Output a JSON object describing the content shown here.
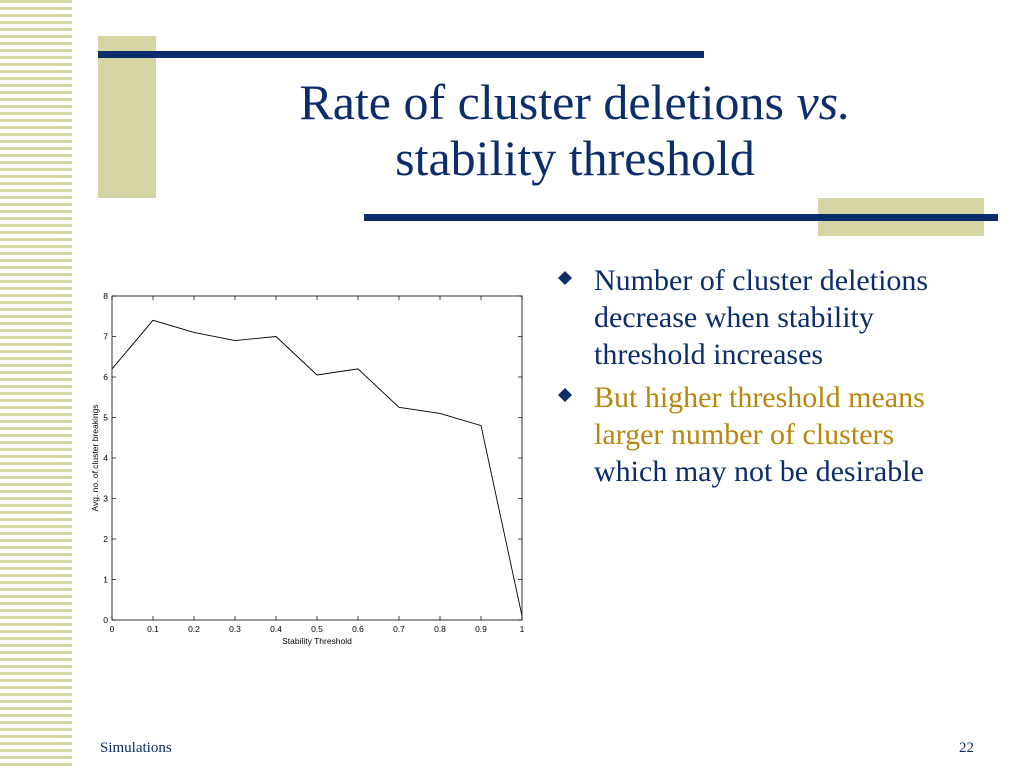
{
  "title": {
    "line1_text": "Rate of cluster deletions",
    "line1_italic": "vs.",
    "line2": "stability threshold"
  },
  "bullets": [
    {
      "parts": [
        {
          "text": "Number of cluster deletions decrease when stability threshold increases",
          "color": "#0b2d6b"
        }
      ]
    },
    {
      "parts": [
        {
          "text": "But higher threshold means larger number of clusters",
          "color": "#b8860b"
        },
        {
          "text": " which may not be desirable",
          "color": "#0b2d6b"
        }
      ]
    }
  ],
  "footer": {
    "section": "Simulations",
    "page": "22"
  },
  "colors": {
    "title": "#0b2d6b",
    "accent": "#b8860b",
    "deco": "#d6d6a4"
  },
  "chart_data": {
    "type": "line",
    "xlabel": "Stability Threshold",
    "ylabel": "Avg. no. of cluster breakings",
    "xlim": [
      0,
      1
    ],
    "ylim": [
      0,
      8
    ],
    "xticks": [
      "0",
      "0.1",
      "0.2",
      "0.3",
      "0.4",
      "0.5",
      "0.6",
      "0.7",
      "0.8",
      "0.9",
      "1"
    ],
    "yticks": [
      "0",
      "1",
      "2",
      "3",
      "4",
      "5",
      "6",
      "7",
      "8"
    ],
    "x": [
      0,
      0.1,
      0.2,
      0.3,
      0.4,
      0.5,
      0.6,
      0.7,
      0.8,
      0.9,
      1.0
    ],
    "series": [
      {
        "values": [
          6.2,
          7.4,
          7.1,
          6.9,
          7.0,
          6.05,
          6.2,
          5.25,
          5.1,
          4.8,
          0.1
        ]
      }
    ],
    "grid": false
  }
}
